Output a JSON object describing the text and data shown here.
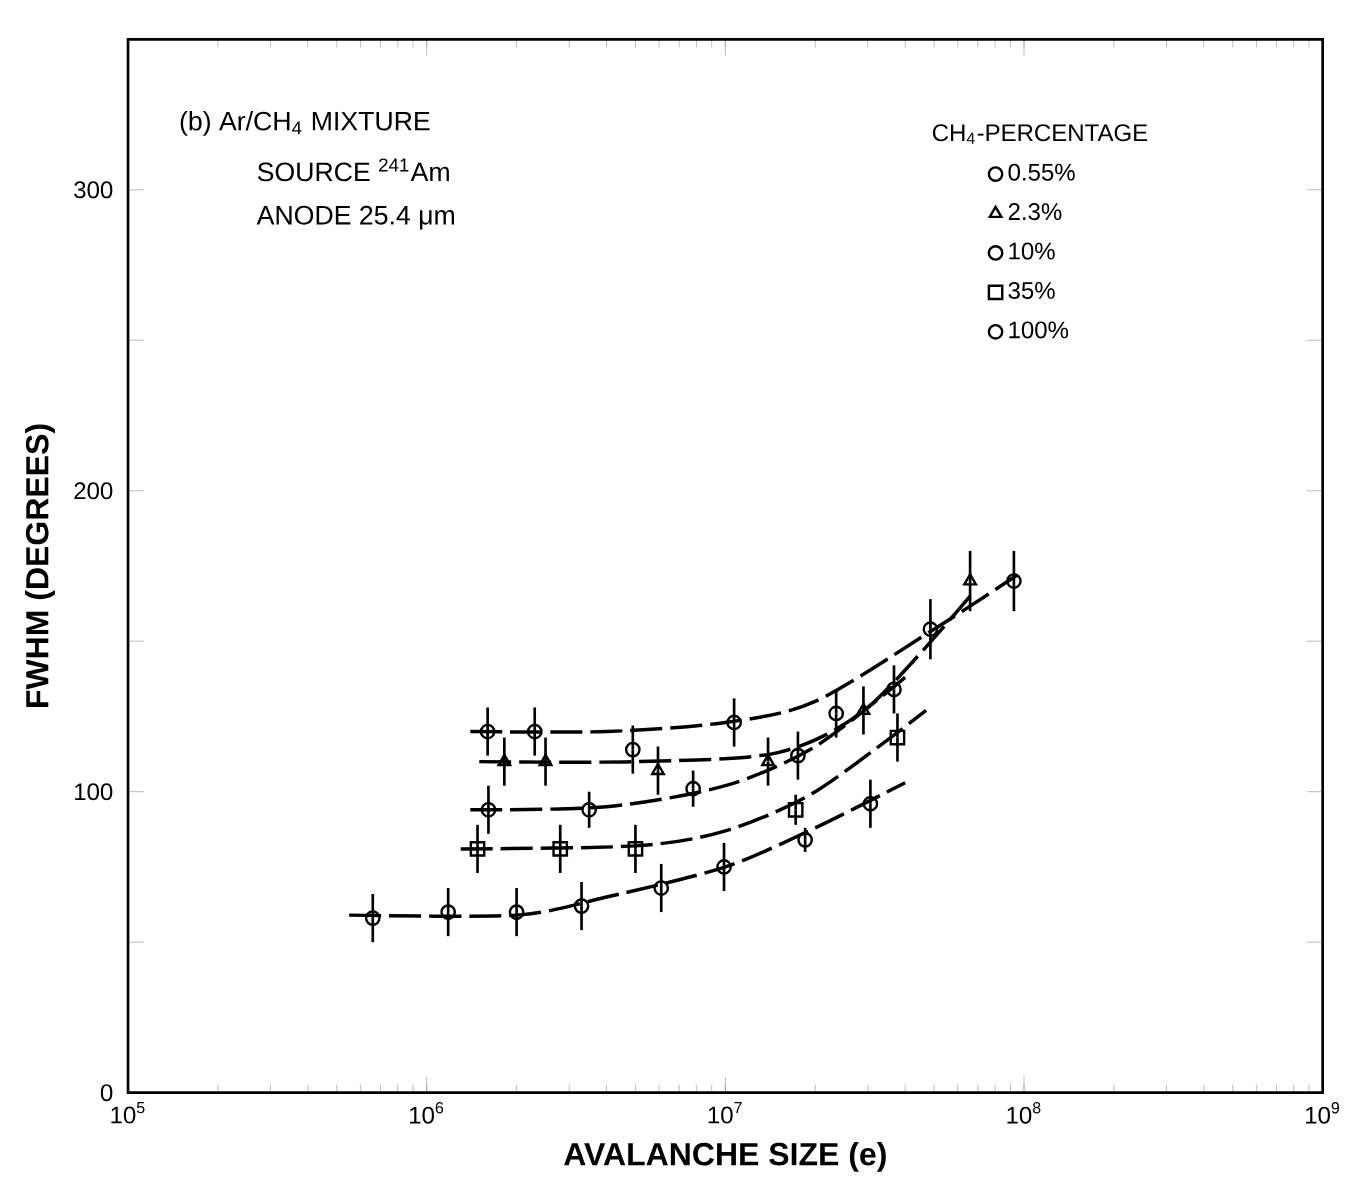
{
  "chart_data": {
    "type": "scatter",
    "xlabel": "AVALANCHE SIZE (e)",
    "ylabel": "FWHM (DEGREES)",
    "legend_title": "CH$_{4}$-PERCENTAGE",
    "log": "x",
    "xlim": [
      100000,
      1000000000
    ],
    "ylim": [
      0,
      350
    ],
    "xticks": [
      {
        "value": 100000,
        "label": "10$^{5}$"
      },
      {
        "value": 1000000,
        "label": "10$^{6}$"
      },
      {
        "value": 10000000,
        "label": "10$^{7}$"
      },
      {
        "value": 100000000,
        "label": "10$^{8}$"
      },
      {
        "value": 1000000000,
        "label": "10$^{9}$"
      }
    ],
    "yticks": [
      0,
      {
        "value": 50,
        "label": null
      },
      100,
      {
        "value": 150,
        "label": null
      },
      200,
      {
        "value": 250,
        "label": null
      },
      300
    ],
    "grid": false,
    "legend": "top right",
    "color": "#000000",
    "annotations": [
      "(b) Ar/CH$_{4}$ MIXTURE",
      "SOURCE $^{241}$Am",
      "ANODE 25.4 μm"
    ],
    "series": [
      {
        "name": "0.55%",
        "marker": "circle",
        "x": [
          1600000,
          2300000,
          4900000,
          10700000,
          23500000,
          48600000,
          92500000
        ],
        "values": [
          120,
          120,
          114,
          123,
          126,
          154,
          170
        ],
        "errors": [
          8,
          8,
          8,
          8,
          8,
          10,
          10
        ]
      },
      {
        "name": "2.3%",
        "marker": "triangle",
        "x": [
          1820000,
          2500000,
          5950000,
          13900000,
          29000000,
          66000000
        ],
        "values": [
          110,
          110,
          107,
          110,
          127,
          170
        ],
        "errors": [
          8,
          8,
          8,
          8,
          8,
          10
        ]
      },
      {
        "name": "10%",
        "marker": "circle",
        "x": [
          1610000,
          3500000,
          7800000,
          17500000,
          36700000
        ],
        "values": [
          94,
          94,
          101,
          112,
          134
        ],
        "errors": [
          8,
          6,
          6,
          8,
          8
        ]
      },
      {
        "name": "35%",
        "marker": "square",
        "x": [
          1480000,
          2800000,
          5000000,
          17200000,
          37700000
        ],
        "values": [
          81,
          81,
          81,
          94,
          118
        ],
        "errors": [
          8,
          8,
          8,
          5,
          8
        ]
      },
      {
        "name": "100%",
        "marker": "circle",
        "x": [
          660000,
          1180000,
          2000000,
          3300000,
          6100000,
          9900000,
          18500000,
          30600000
        ],
        "values": [
          58,
          60,
          60,
          62,
          68,
          75,
          84,
          96
        ],
        "errors": [
          8,
          8,
          8,
          8,
          8,
          8,
          4,
          8
        ]
      },
      {
        "type": "line",
        "line_style": "dashed",
        "color": "#000000",
        "x": [
          1400000,
          4000000,
          10000000,
          20000000,
          50000000,
          95000000
        ],
        "values": [
          120,
          120,
          123,
          130,
          154,
          172
        ]
      },
      {
        "type": "line",
        "line_style": "dashed",
        "color": "#000000",
        "x": [
          1500000,
          5000000,
          15000000,
          30000000,
          66000000
        ],
        "values": [
          110,
          110,
          113,
          128,
          165
        ]
      },
      {
        "type": "line",
        "line_style": "dashed",
        "color": "#000000",
        "x": [
          1400000,
          4000000,
          10000000,
          20000000,
          40000000
        ],
        "values": [
          94,
          95,
          102,
          115,
          138
        ]
      },
      {
        "type": "line",
        "line_style": "dashed",
        "color": "#000000",
        "x": [
          1300000,
          5000000,
          10000000,
          20000000,
          47000000
        ],
        "values": [
          81,
          82,
          87,
          100,
          127
        ]
      },
      {
        "type": "line",
        "line_style": "dashed",
        "color": "#000000",
        "x": [
          550000,
          2000000,
          4000000,
          10000000,
          20000000,
          40000000
        ],
        "values": [
          59,
          59,
          65,
          75,
          88,
          103
        ]
      }
    ]
  }
}
